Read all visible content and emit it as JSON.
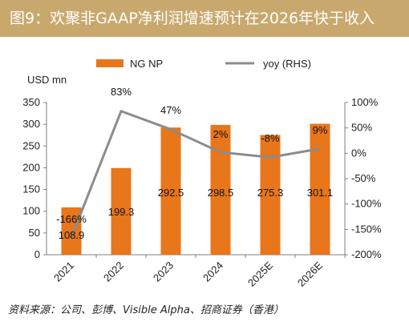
{
  "title": "图9：欢聚非GAAP净利润增速预计在2026年快于收入",
  "source": "资料来源：公司、彭博、Visible Alpha、招商证券（香港）",
  "colors": {
    "title_bg": "#C9A86E",
    "bar": "#E8761B",
    "line": "#8C8C8C",
    "axis": "#7F7F7F"
  },
  "chart_data": {
    "type": "bar",
    "categories": [
      "2021",
      "2022",
      "2023",
      "2024",
      "2025E",
      "2026E"
    ],
    "unit_label": "USD mn",
    "series": [
      {
        "name": "NG NP",
        "type": "bar",
        "axis": "left",
        "values": [
          108.9,
          199.3,
          292.5,
          298.5,
          275.3,
          301.1
        ],
        "labels": [
          "108.9",
          "199.3",
          "292.5",
          "298.5",
          "275.3",
          "301.1"
        ]
      },
      {
        "name": "yoy (RHS)",
        "type": "line",
        "axis": "right",
        "values": [
          -166,
          83,
          47,
          2,
          -8,
          9
        ],
        "labels": [
          "-166%",
          "83%",
          "47%",
          "2%",
          "-8%",
          "9%"
        ]
      }
    ],
    "ylim": [
      0,
      350
    ],
    "yticks": [
      0,
      50,
      100,
      150,
      200,
      250,
      300,
      350
    ],
    "y2lim": [
      -200,
      100
    ],
    "y2ticks": [
      "-200%",
      "-150%",
      "-100%",
      "-50%",
      "0%",
      "50%",
      "100%"
    ],
    "legend_position": "top",
    "grid": false
  }
}
